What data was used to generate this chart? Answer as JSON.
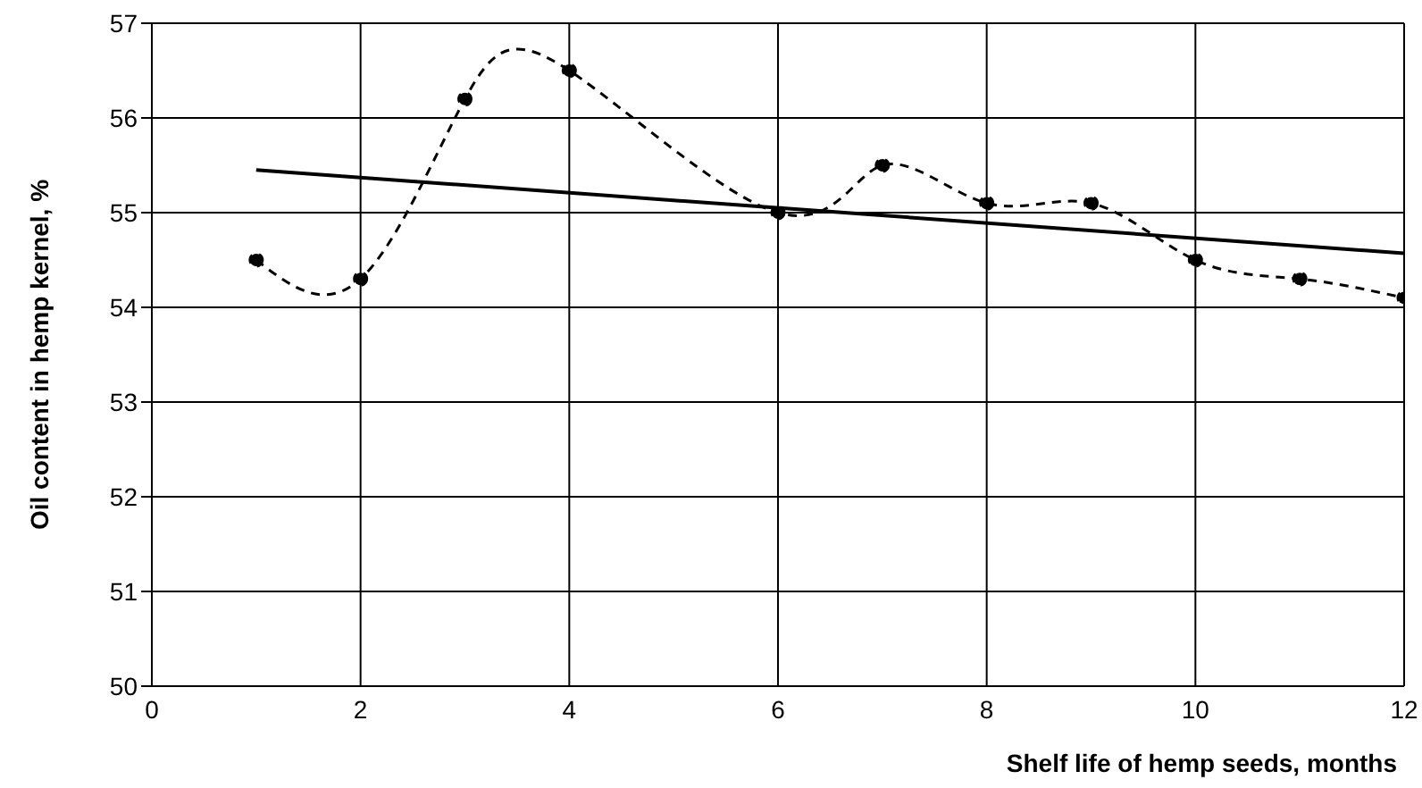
{
  "chart_data": {
    "type": "line",
    "xlabel": "Shelf life of hemp seeds, months",
    "ylabel": "Oil content in hemp kernel, %",
    "x": [
      1,
      2,
      3,
      4,
      6,
      7,
      8,
      9,
      10,
      11,
      12
    ],
    "series": [
      {
        "color": "#000000",
        "values": [
          54.5,
          54.3,
          56.2,
          56.5,
          55.0,
          55.5,
          55.1,
          55.1,
          54.5,
          54.3,
          54.1
        ],
        "line_style": "dashed",
        "marker": "circle"
      },
      {
        "type": "line",
        "x": [
          1,
          12
        ],
        "color": "#000000",
        "values": [
          55.45,
          54.57
        ],
        "line_style": "solid",
        "marker": "none"
      }
    ],
    "xlim": [
      0,
      12
    ],
    "xticks": [
      0,
      2,
      4,
      6,
      8,
      10,
      12
    ],
    "ylim": [
      50,
      57
    ],
    "yticks": [
      50,
      51,
      52,
      53,
      54,
      55,
      56,
      57
    ],
    "grid": true,
    "legend": false
  }
}
